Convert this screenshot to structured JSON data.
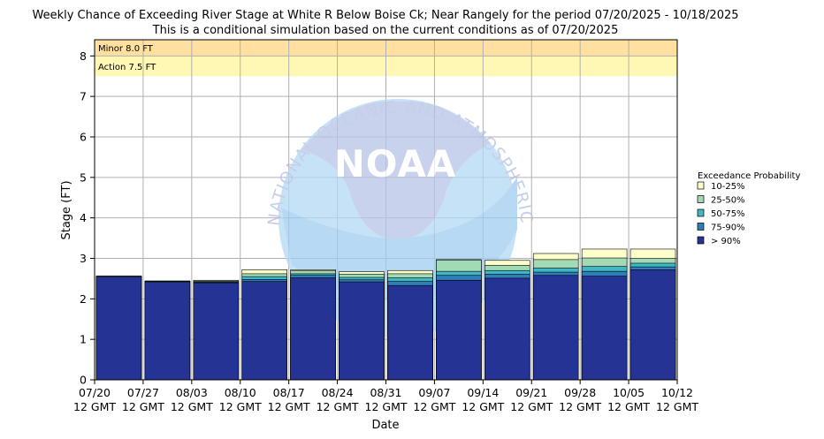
{
  "chart_data": {
    "type": "bar",
    "title": "Weekly Chance of Exceeding River Stage at White R Below Boise Ck; Near Rangely for the period 07/20/2025 - 10/18/2025",
    "subtitle": "This is a conditional simulation based on the current conditions as of 07/20/2025",
    "xlabel": "Date",
    "ylabel": "Stage (FT)",
    "ylim": [
      0,
      8.4
    ],
    "yticks": [
      "0",
      "1",
      "2",
      "3",
      "4",
      "5",
      "6",
      "7",
      "8"
    ],
    "xticks": [
      {
        "date": "07/20",
        "time": "12 GMT"
      },
      {
        "date": "07/27",
        "time": "12 GMT"
      },
      {
        "date": "08/03",
        "time": "12 GMT"
      },
      {
        "date": "08/10",
        "time": "12 GMT"
      },
      {
        "date": "08/17",
        "time": "12 GMT"
      },
      {
        "date": "08/24",
        "time": "12 GMT"
      },
      {
        "date": "08/31",
        "time": "12 GMT"
      },
      {
        "date": "09/07",
        "time": "12 GMT"
      },
      {
        "date": "09/14",
        "time": "12 GMT"
      },
      {
        "date": "09/21",
        "time": "12 GMT"
      },
      {
        "date": "09/28",
        "time": "12 GMT"
      },
      {
        "date": "10/05",
        "time": "12 GMT"
      },
      {
        "date": "10/12",
        "time": "12 GMT"
      }
    ],
    "grid": true,
    "legend_placement": "right",
    "legend_title": "Exceedance Probability",
    "flood_levels": [
      {
        "label": "Minor 8.0 FT",
        "value": 8.0,
        "color": "#ffe0a0"
      },
      {
        "label": "Action 7.5 FT",
        "value": 7.5,
        "color": "#fff8b4"
      }
    ],
    "categories": [
      "07/20",
      "07/27",
      "08/03",
      "08/10",
      "08/17",
      "08/24",
      "08/31",
      "09/07",
      "09/14",
      "09/21",
      "09/28",
      "10/05"
    ],
    "series": [
      {
        "name": "> 90%",
        "color": "#253494",
        "values": [
          2.55,
          2.41,
          2.39,
          2.43,
          2.52,
          2.42,
          2.33,
          2.46,
          2.51,
          2.58,
          2.56,
          2.72
        ]
      },
      {
        "name": "75-90%",
        "color": "#2c7fb8",
        "values": [
          2.56,
          2.43,
          2.41,
          2.48,
          2.58,
          2.47,
          2.43,
          2.58,
          2.61,
          2.66,
          2.68,
          2.79
        ]
      },
      {
        "name": "50-75%",
        "color": "#41b6c4",
        "values": [
          2.56,
          2.44,
          2.42,
          2.55,
          2.62,
          2.53,
          2.52,
          2.68,
          2.7,
          2.76,
          2.8,
          2.88
        ]
      },
      {
        "name": "25-50%",
        "color": "#a1dab4",
        "values": [
          2.56,
          2.44,
          2.44,
          2.62,
          2.69,
          2.61,
          2.62,
          2.96,
          2.83,
          2.97,
          3.01,
          3.0
        ]
      },
      {
        "name": "10-25%",
        "color": "#ffffcc",
        "values": [
          2.56,
          2.44,
          2.46,
          2.72,
          2.72,
          2.67,
          2.7,
          2.97,
          2.95,
          3.12,
          3.23,
          3.23
        ]
      }
    ]
  },
  "watermark": {
    "logo_text": "NOAA",
    "ring_text": "NATIONAL OCEANIC AND ATMOSPHERIC ADMINISTRATION"
  }
}
